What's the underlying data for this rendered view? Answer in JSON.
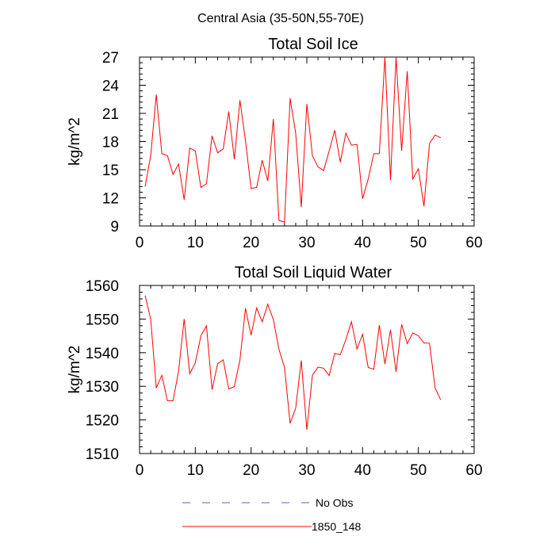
{
  "suptitle": "Central Asia (35-50N,55-70E)",
  "legend": {
    "items": [
      {
        "label": "No Obs",
        "color": "#5a5ad6",
        "style": "dashed"
      },
      {
        "label": "1850_148",
        "color": "#ff0000",
        "style": "solid"
      }
    ]
  },
  "chart_data": [
    {
      "type": "line",
      "title": "Total Soil Ice",
      "xlabel": "",
      "ylabel": "kg/m^2",
      "xlim": [
        0,
        60
      ],
      "ylim": [
        9,
        27
      ],
      "xticks": [
        0,
        10,
        20,
        30,
        40,
        50,
        60
      ],
      "yticks": [
        9,
        12,
        15,
        18,
        21,
        24,
        27
      ],
      "grid": false,
      "series": [
        {
          "name": "1850_148",
          "color": "#ff0000",
          "x": [
            1,
            2,
            3,
            4,
            5,
            6,
            7,
            8,
            9,
            10,
            11,
            12,
            13,
            14,
            15,
            16,
            17,
            18,
            19,
            20,
            21,
            22,
            23,
            24,
            25,
            26,
            27,
            28,
            29,
            30,
            31,
            32,
            33,
            34,
            35,
            36,
            37,
            38,
            39,
            40,
            41,
            42,
            43,
            44,
            45,
            46,
            47,
            48,
            49,
            50,
            51,
            52,
            53,
            54
          ],
          "values": [
            13.2,
            16.5,
            23.0,
            16.7,
            16.5,
            14.5,
            15.6,
            11.8,
            17.3,
            17.0,
            13.1,
            13.5,
            18.6,
            16.8,
            17.2,
            21.2,
            16.1,
            22.4,
            18.1,
            13.0,
            13.1,
            16.0,
            13.8,
            20.4,
            9.6,
            9.4,
            22.6,
            18.9,
            11.0,
            22.0,
            16.5,
            15.3,
            14.9,
            17.0,
            19.2,
            15.8,
            18.9,
            17.6,
            17.7,
            11.9,
            14.0,
            16.7,
            16.7,
            27.0,
            13.9,
            27.0,
            17.0,
            25.5,
            14.0,
            15.1,
            11.1,
            17.8,
            18.7,
            18.4
          ]
        }
      ]
    },
    {
      "type": "line",
      "title": "Total Soil Liquid Water",
      "xlabel": "",
      "ylabel": "kg/m^2",
      "xlim": [
        0,
        60
      ],
      "ylim": [
        1510,
        1560
      ],
      "xticks": [
        0,
        10,
        20,
        30,
        40,
        50,
        60
      ],
      "yticks": [
        1510,
        1520,
        1530,
        1540,
        1550,
        1560
      ],
      "grid": false,
      "series": [
        {
          "name": "1850_148",
          "color": "#ff0000",
          "x": [
            1,
            2,
            3,
            4,
            5,
            6,
            7,
            8,
            9,
            10,
            11,
            12,
            13,
            14,
            15,
            16,
            17,
            18,
            19,
            20,
            21,
            22,
            23,
            24,
            25,
            26,
            27,
            28,
            29,
            30,
            31,
            32,
            33,
            34,
            35,
            36,
            37,
            38,
            39,
            40,
            41,
            42,
            43,
            44,
            45,
            46,
            47,
            48,
            49,
            50,
            51,
            52,
            53,
            54
          ],
          "values": [
            1557,
            1550,
            1529.5,
            1533.3,
            1525.7,
            1525.7,
            1534.5,
            1550,
            1533.7,
            1537,
            1545,
            1548,
            1529,
            1536.7,
            1537.9,
            1529.2,
            1529.9,
            1537.8,
            1553.2,
            1545.2,
            1553.3,
            1549.2,
            1554.4,
            1549.8,
            1541,
            1535.6,
            1519,
            1523.5,
            1537.7,
            1517.1,
            1533.3,
            1535.7,
            1535.4,
            1533.2,
            1539.8,
            1539.4,
            1543.9,
            1549.2,
            1541.1,
            1545.5,
            1535.6,
            1535.1,
            1548.2,
            1536.6,
            1546.8,
            1534.3,
            1548.4,
            1542.7,
            1545.9,
            1545,
            1542.9,
            1542.8,
            1529.5,
            1526
          ]
        }
      ]
    }
  ]
}
